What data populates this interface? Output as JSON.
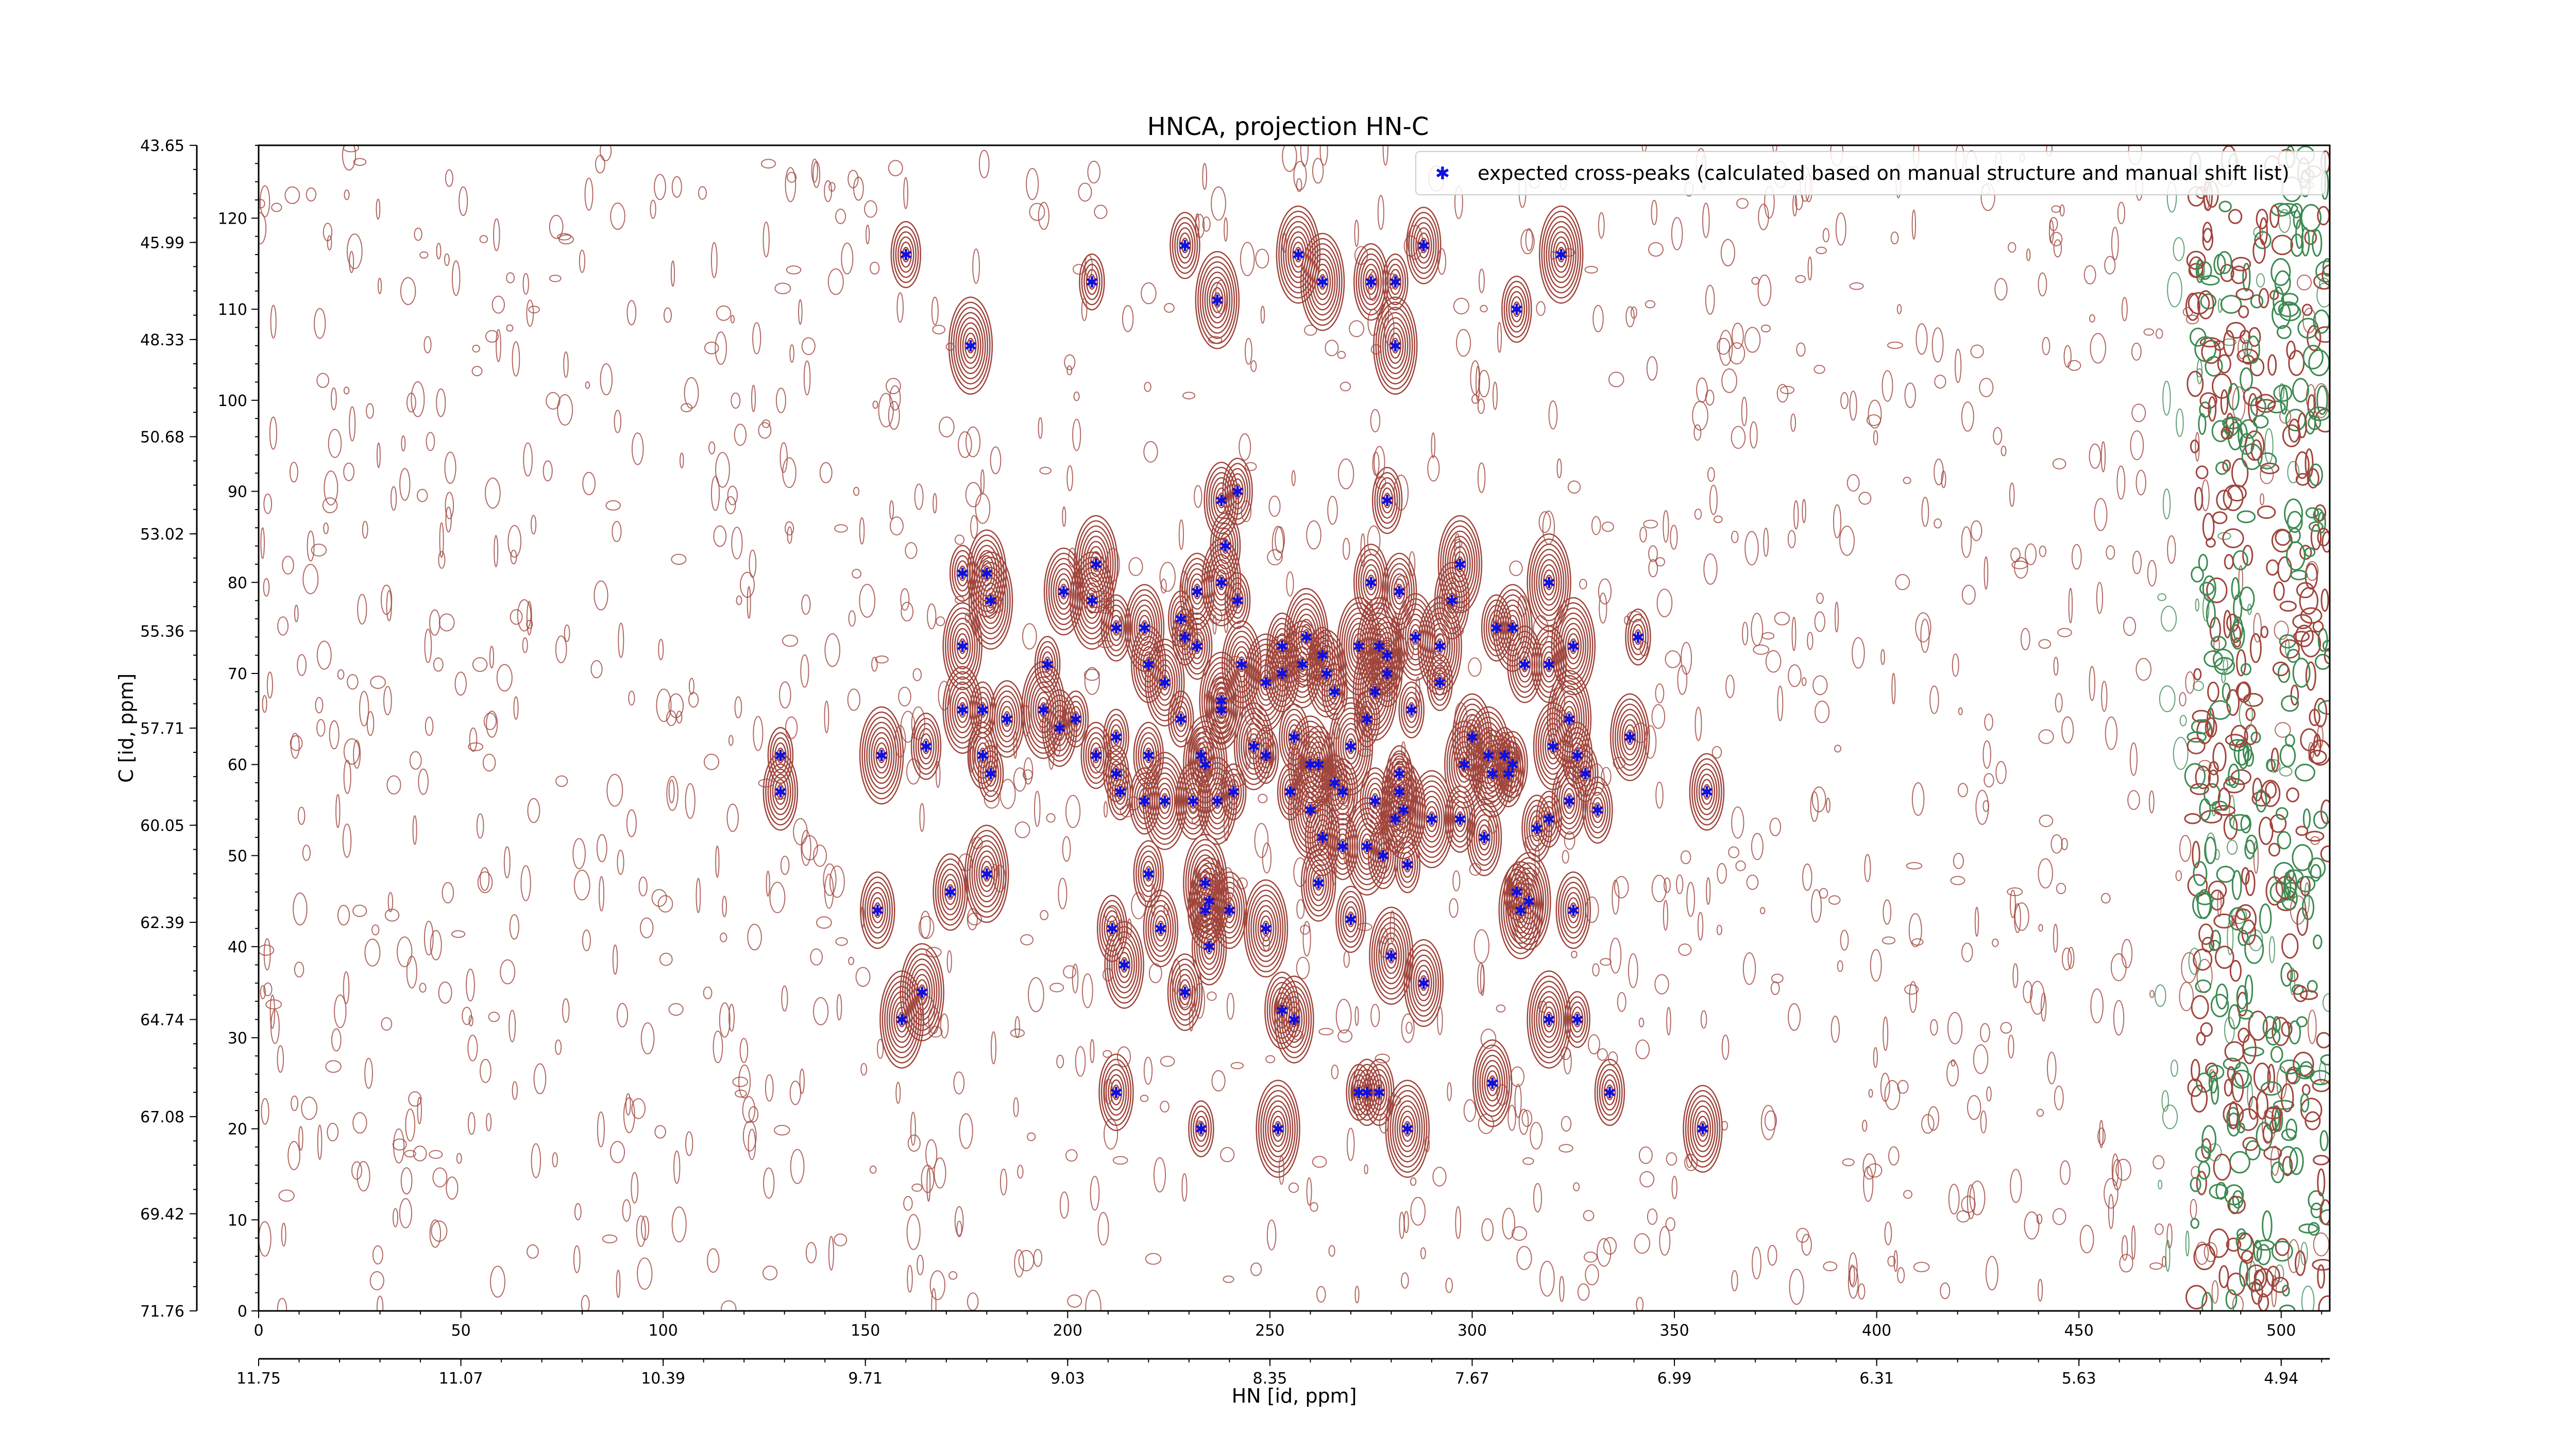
{
  "chart_data": {
    "type": "scatter",
    "title": "HNCA, projection HN-C",
    "xlabel": "HN [id, ppm]",
    "ylabel": "C [id, ppm]",
    "legend": {
      "label": "expected cross-peaks (calculated based on manual structure and manual shift list)",
      "placement": "top-right"
    },
    "grid": false,
    "xlim": [
      0,
      512
    ],
    "ylim": [
      0,
      128
    ],
    "x_ticks": [
      0,
      50,
      100,
      150,
      200,
      250,
      300,
      350,
      400,
      450,
      500
    ],
    "x_ticks_ppm": [
      {
        "pos": 0,
        "label": "11.75"
      },
      {
        "pos": 50,
        "label": "11.07"
      },
      {
        "pos": 100,
        "label": "10.39"
      },
      {
        "pos": 150,
        "label": "9.71"
      },
      {
        "pos": 200,
        "label": "9.03"
      },
      {
        "pos": 250,
        "label": "8.35"
      },
      {
        "pos": 300,
        "label": "7.67"
      },
      {
        "pos": 350,
        "label": "6.99"
      },
      {
        "pos": 400,
        "label": "6.31"
      },
      {
        "pos": 450,
        "label": "5.63"
      },
      {
        "pos": 500,
        "label": "4.94"
      }
    ],
    "y_ticks": [
      0,
      10,
      20,
      30,
      40,
      50,
      60,
      70,
      80,
      90,
      100,
      110,
      120
    ],
    "y_ticks_ppm": [
      {
        "pos": 0,
        "label": "71.76"
      },
      {
        "pos": 10.67,
        "label": "69.42"
      },
      {
        "pos": 21.33,
        "label": "67.08"
      },
      {
        "pos": 32,
        "label": "64.74"
      },
      {
        "pos": 42.67,
        "label": "62.39"
      },
      {
        "pos": 53.33,
        "label": "60.05"
      },
      {
        "pos": 64,
        "label": "57.71"
      },
      {
        "pos": 74.67,
        "label": "55.36"
      },
      {
        "pos": 85.33,
        "label": "53.02"
      },
      {
        "pos": 96,
        "label": "50.68"
      },
      {
        "pos": 106.67,
        "label": "48.33"
      },
      {
        "pos": 117.33,
        "label": "45.99"
      },
      {
        "pos": 128,
        "label": "43.65"
      }
    ],
    "colors": {
      "positive_contour": "#a0453c",
      "negative_contour": "#3d8a52",
      "peak_marker": "#1010e0"
    },
    "series": [
      {
        "name": "expected cross-peaks (calculated based on manual structure and manual shift list)",
        "points": [
          [
            160,
            116
          ],
          [
            229,
            117
          ],
          [
            257,
            116
          ],
          [
            263,
            113
          ],
          [
            275,
            113
          ],
          [
            281,
            113
          ],
          [
            288,
            117
          ],
          [
            322,
            116
          ],
          [
            206,
            113
          ],
          [
            237,
            111
          ],
          [
            311,
            110
          ],
          [
            176,
            106
          ],
          [
            281,
            106
          ],
          [
            238,
            89
          ],
          [
            242,
            90
          ],
          [
            279,
            89
          ],
          [
            174,
            81
          ],
          [
            180,
            81
          ],
          [
            181,
            78
          ],
          [
            199,
            79
          ],
          [
            206,
            78
          ],
          [
            207,
            82
          ],
          [
            232,
            79
          ],
          [
            238,
            80
          ],
          [
            239,
            84
          ],
          [
            242,
            78
          ],
          [
            275,
            80
          ],
          [
            282,
            79
          ],
          [
            295,
            78
          ],
          [
            297,
            82
          ],
          [
            319,
            80
          ],
          [
            174,
            73
          ],
          [
            212,
            75
          ],
          [
            219,
            75
          ],
          [
            228,
            76
          ],
          [
            229,
            74
          ],
          [
            232,
            73
          ],
          [
            243,
            71
          ],
          [
            253,
            73
          ],
          [
            258,
            71
          ],
          [
            259,
            74
          ],
          [
            263,
            72
          ],
          [
            272,
            73
          ],
          [
            277,
            73
          ],
          [
            279,
            72
          ],
          [
            286,
            74
          ],
          [
            292,
            73
          ],
          [
            306,
            75
          ],
          [
            310,
            75
          ],
          [
            319,
            71
          ],
          [
            325,
            73
          ],
          [
            341,
            74
          ],
          [
            195,
            71
          ],
          [
            220,
            71
          ],
          [
            224,
            69
          ],
          [
            238,
            67
          ],
          [
            249,
            69
          ],
          [
            253,
            70
          ],
          [
            264,
            70
          ],
          [
            266,
            68
          ],
          [
            276,
            68
          ],
          [
            279,
            70
          ],
          [
            292,
            69
          ],
          [
            313,
            71
          ],
          [
            174,
            66
          ],
          [
            179,
            66
          ],
          [
            185,
            65
          ],
          [
            194,
            66
          ],
          [
            198,
            64
          ],
          [
            202,
            65
          ],
          [
            212,
            63
          ],
          [
            228,
            65
          ],
          [
            233,
            61
          ],
          [
            238,
            66
          ],
          [
            246,
            62
          ],
          [
            256,
            63
          ],
          [
            270,
            62
          ],
          [
            274,
            65
          ],
          [
            285,
            66
          ],
          [
            300,
            63
          ],
          [
            304,
            61
          ],
          [
            308,
            61
          ],
          [
            310,
            60
          ],
          [
            320,
            62
          ],
          [
            324,
            65
          ],
          [
            339,
            63
          ],
          [
            129,
            61
          ],
          [
            154,
            61
          ],
          [
            165,
            62
          ],
          [
            179,
            61
          ],
          [
            207,
            61
          ],
          [
            220,
            61
          ],
          [
            234,
            60
          ],
          [
            249,
            61
          ],
          [
            260,
            60
          ],
          [
            262,
            60
          ],
          [
            268,
            57
          ],
          [
            282,
            59
          ],
          [
            298,
            60
          ],
          [
            305,
            59
          ],
          [
            309,
            59
          ],
          [
            326,
            61
          ],
          [
            328,
            59
          ],
          [
            129,
            57
          ],
          [
            181,
            59
          ],
          [
            212,
            59
          ],
          [
            213,
            57
          ],
          [
            224,
            56
          ],
          [
            237,
            56
          ],
          [
            241,
            57
          ],
          [
            255,
            57
          ],
          [
            260,
            55
          ],
          [
            266,
            58
          ],
          [
            276,
            56
          ],
          [
            282,
            57
          ],
          [
            297,
            54
          ],
          [
            324,
            56
          ],
          [
            331,
            55
          ],
          [
            358,
            57
          ],
          [
            219,
            56
          ],
          [
            231,
            56
          ],
          [
            263,
            52
          ],
          [
            268,
            51
          ],
          [
            274,
            51
          ],
          [
            281,
            54
          ],
          [
            283,
            55
          ],
          [
            290,
            54
          ],
          [
            303,
            52
          ],
          [
            316,
            53
          ],
          [
            319,
            54
          ],
          [
            171,
            46
          ],
          [
            180,
            48
          ],
          [
            220,
            48
          ],
          [
            234,
            47
          ],
          [
            235,
            45
          ],
          [
            262,
            47
          ],
          [
            278,
            50
          ],
          [
            284,
            49
          ],
          [
            311,
            46
          ],
          [
            312,
            44
          ],
          [
            314,
            45
          ],
          [
            325,
            44
          ],
          [
            153,
            44
          ],
          [
            223,
            42
          ],
          [
            234,
            44
          ],
          [
            240,
            44
          ],
          [
            270,
            43
          ],
          [
            211,
            42
          ],
          [
            214,
            38
          ],
          [
            235,
            40
          ],
          [
            249,
            42
          ],
          [
            280,
            39
          ],
          [
            288,
            36
          ],
          [
            229,
            35
          ],
          [
            253,
            33
          ],
          [
            256,
            32
          ],
          [
            164,
            35
          ],
          [
            159,
            32
          ],
          [
            319,
            32
          ],
          [
            326,
            32
          ],
          [
            212,
            24
          ],
          [
            272,
            24
          ],
          [
            274,
            24
          ],
          [
            277,
            24
          ],
          [
            305,
            25
          ],
          [
            334,
            24
          ],
          [
            233,
            20
          ],
          [
            252,
            20
          ],
          [
            284,
            20
          ],
          [
            357,
            20
          ]
        ]
      }
    ]
  }
}
